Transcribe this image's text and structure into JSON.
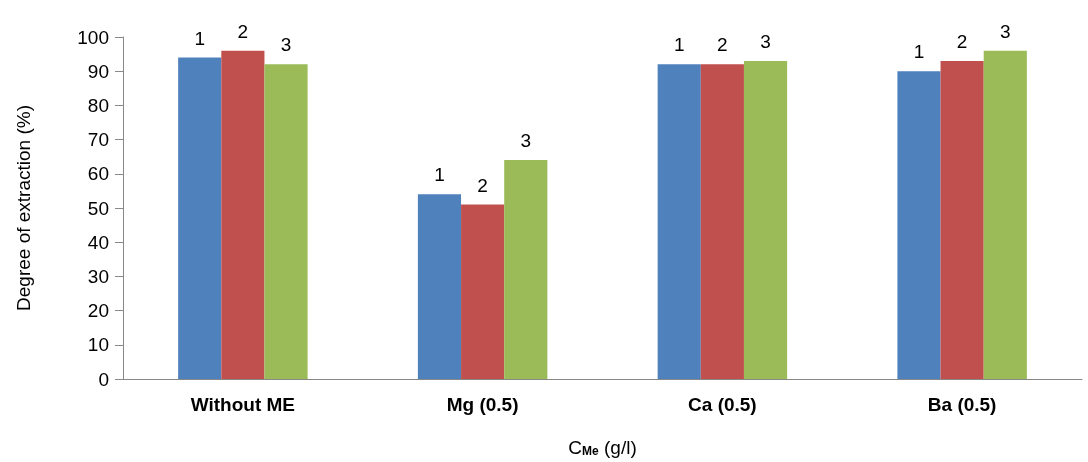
{
  "chart_data": {
    "type": "bar",
    "categories": [
      "Without ME",
      "Mg (0.5)",
      "Ca (0.5)",
      "Ba (0.5)"
    ],
    "series": [
      {
        "name": "1",
        "color": "#4f81bd",
        "values": [
          94,
          54,
          92,
          90
        ]
      },
      {
        "name": "2",
        "color": "#c0504d",
        "values": [
          96,
          51,
          92,
          93
        ]
      },
      {
        "name": "3",
        "color": "#9bbb59",
        "values": [
          92,
          64,
          93,
          96
        ]
      }
    ],
    "xlabel": "C$_{Me}$ (g/l)",
    "ylabel": "Degree of extraction (%)",
    "ylim": [
      0,
      100
    ],
    "yticks": [
      0,
      10,
      20,
      30,
      40,
      50,
      60,
      70,
      80,
      90,
      100
    ],
    "grid": false,
    "legend": false
  }
}
